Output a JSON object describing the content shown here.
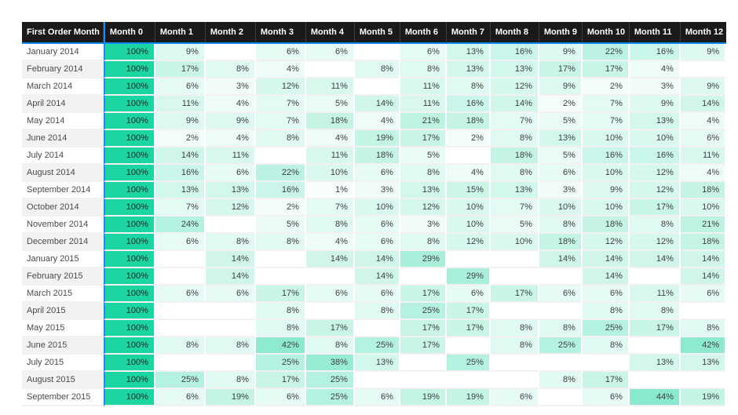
{
  "chart_data": {
    "type": "heatmap",
    "title": "",
    "corner_header": "First Order Month",
    "columns": [
      "Month 0",
      "Month 1",
      "Month 2",
      "Month 3",
      "Month 4",
      "Month 5",
      "Month 6",
      "Month 7",
      "Month 8",
      "Month 9",
      "Month 10",
      "Month 11",
      "Month 12"
    ],
    "value_suffix": "%",
    "color_scale": {
      "min_color": "#FFFFFF",
      "max_color": "#1BD5A2",
      "domain": [
        0,
        100
      ]
    },
    "rows": [
      {
        "label": "January 2014",
        "values": [
          100,
          9,
          null,
          6,
          6,
          null,
          6,
          13,
          16,
          9,
          22,
          16,
          9
        ]
      },
      {
        "label": "February 2014",
        "values": [
          100,
          17,
          8,
          4,
          null,
          8,
          8,
          13,
          13,
          17,
          17,
          4,
          null
        ]
      },
      {
        "label": "March 2014",
        "values": [
          100,
          6,
          3,
          12,
          11,
          null,
          11,
          8,
          12,
          9,
          2,
          3,
          9
        ]
      },
      {
        "label": "April 2014",
        "values": [
          100,
          11,
          4,
          7,
          5,
          14,
          11,
          16,
          14,
          2,
          7,
          9,
          14
        ]
      },
      {
        "label": "May 2014",
        "values": [
          100,
          9,
          9,
          7,
          18,
          4,
          21,
          18,
          7,
          5,
          7,
          13,
          4
        ]
      },
      {
        "label": "June 2014",
        "values": [
          100,
          2,
          4,
          8,
          4,
          19,
          17,
          2,
          8,
          13,
          10,
          10,
          6
        ]
      },
      {
        "label": "July 2014",
        "values": [
          100,
          14,
          11,
          null,
          11,
          18,
          5,
          null,
          18,
          5,
          16,
          16,
          11
        ]
      },
      {
        "label": "August 2014",
        "values": [
          100,
          16,
          6,
          22,
          10,
          6,
          8,
          4,
          8,
          6,
          10,
          12,
          4
        ]
      },
      {
        "label": "September 2014",
        "values": [
          100,
          13,
          13,
          16,
          1,
          3,
          13,
          15,
          13,
          3,
          9,
          12,
          18
        ]
      },
      {
        "label": "October 2014",
        "values": [
          100,
          7,
          12,
          2,
          7,
          10,
          12,
          10,
          7,
          10,
          10,
          17,
          10
        ]
      },
      {
        "label": "November 2014",
        "values": [
          100,
          24,
          null,
          5,
          8,
          6,
          3,
          10,
          5,
          8,
          18,
          8,
          21
        ]
      },
      {
        "label": "December 2014",
        "values": [
          100,
          6,
          8,
          8,
          4,
          6,
          8,
          12,
          10,
          18,
          12,
          12,
          18
        ]
      },
      {
        "label": "January 2015",
        "values": [
          100,
          null,
          14,
          null,
          14,
          14,
          29,
          null,
          null,
          14,
          14,
          14,
          14
        ]
      },
      {
        "label": "February 2015",
        "values": [
          100,
          null,
          14,
          null,
          null,
          14,
          null,
          29,
          null,
          null,
          14,
          null,
          14
        ]
      },
      {
        "label": "March 2015",
        "values": [
          100,
          6,
          6,
          17,
          6,
          6,
          17,
          6,
          17,
          6,
          6,
          11,
          6
        ]
      },
      {
        "label": "April 2015",
        "values": [
          100,
          null,
          null,
          8,
          null,
          8,
          25,
          17,
          null,
          null,
          8,
          8,
          null
        ]
      },
      {
        "label": "May 2015",
        "values": [
          100,
          null,
          null,
          8,
          17,
          null,
          17,
          17,
          8,
          8,
          25,
          17,
          8
        ]
      },
      {
        "label": "June 2015",
        "values": [
          100,
          8,
          8,
          42,
          8,
          25,
          17,
          null,
          8,
          25,
          8,
          null,
          42
        ]
      },
      {
        "label": "July 2015",
        "values": [
          100,
          null,
          null,
          25,
          38,
          13,
          null,
          25,
          null,
          null,
          null,
          13,
          13
        ]
      },
      {
        "label": "August 2015",
        "values": [
          100,
          25,
          8,
          17,
          25,
          null,
          null,
          null,
          null,
          8,
          17,
          null,
          null
        ]
      },
      {
        "label": "September 2015",
        "values": [
          100,
          6,
          19,
          6,
          25,
          6,
          19,
          19,
          6,
          null,
          6,
          44,
          19
        ]
      }
    ]
  },
  "colors": {
    "header_bg": "#1a1a1a",
    "header_text": "#ffffff",
    "accent_blue": "#118DFF",
    "heat_max_green": "#1BD5A2",
    "row_band": "#f2f2f2",
    "grid_line": "#f1f1f1",
    "cell_text": "#404040"
  }
}
